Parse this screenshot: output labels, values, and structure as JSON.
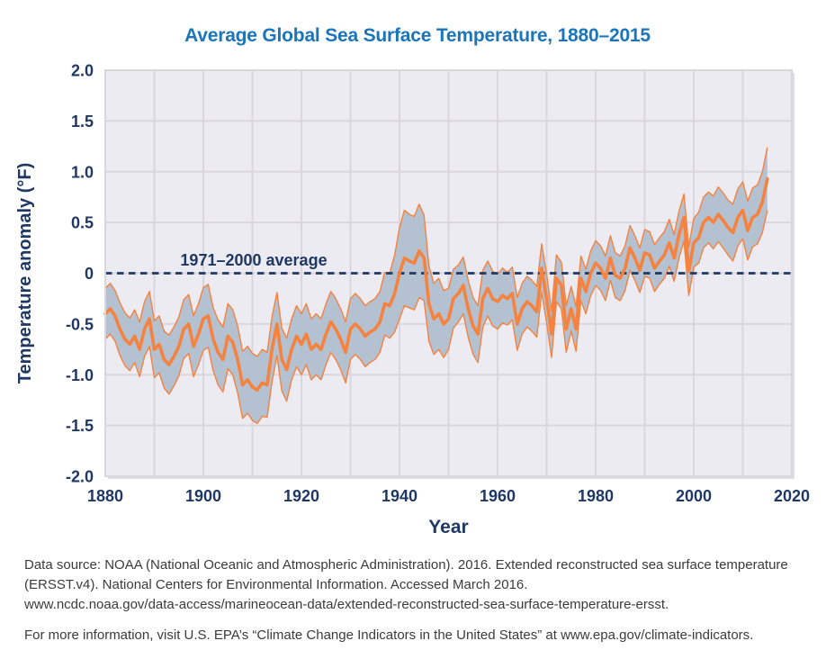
{
  "title": "Average Global Sea Surface Temperature, 1880–2015",
  "footer": {
    "source_lines": [
      "Data source: NOAA (National Oceanic and Atmospheric Administration). 2016. Extended reconstructed sea surface temperature",
      "(ERSST.v4). National Centers for Environmental Information. Accessed March 2016.",
      "www.ncdc.noaa.gov/data-access/marineocean-data/extended-reconstructed-sea-surface-temperature-ersst."
    ],
    "info_line": "For more information, visit U.S. EPA’s “Climate Change Indicators in the United States” at www.epa.gov/climate-indicators."
  },
  "chart_data": {
    "type": "line",
    "title": "Average Global Sea Surface Temperature, 1880–2015",
    "xlabel": "Year",
    "ylabel": "Temperature anomaly (°F)",
    "xlim": [
      1880,
      2020
    ],
    "ylim": [
      -2.0,
      2.0
    ],
    "grid": true,
    "legend_position": "none",
    "x_ticks": [
      1880,
      1900,
      1920,
      1940,
      1960,
      1980,
      2000,
      2020
    ],
    "x_grid_step": 10,
    "y_ticks": [
      {
        "value": 2.0,
        "label": "2.0"
      },
      {
        "value": 1.5,
        "label": "1.5"
      },
      {
        "value": 1.0,
        "label": "1.0"
      },
      {
        "value": 0.5,
        "label": "0.5"
      },
      {
        "value": 0.0,
        "label": "0"
      },
      {
        "value": -0.5,
        "label": "-0.5"
      },
      {
        "value": -1.0,
        "label": "-1.0"
      },
      {
        "value": -1.5,
        "label": "-1.5"
      },
      {
        "value": -2.0,
        "label": "-2.0"
      }
    ],
    "reference_line": {
      "value": 0,
      "label": "1971–2000 average",
      "style": "dashed"
    },
    "x": [
      1880,
      1881,
      1882,
      1883,
      1884,
      1885,
      1886,
      1887,
      1888,
      1889,
      1890,
      1891,
      1892,
      1893,
      1894,
      1895,
      1896,
      1897,
      1898,
      1899,
      1900,
      1901,
      1902,
      1903,
      1904,
      1905,
      1906,
      1907,
      1908,
      1909,
      1910,
      1911,
      1912,
      1913,
      1914,
      1915,
      1916,
      1917,
      1918,
      1919,
      1920,
      1921,
      1922,
      1923,
      1924,
      1925,
      1926,
      1927,
      1928,
      1929,
      1930,
      1931,
      1932,
      1933,
      1934,
      1935,
      1936,
      1937,
      1938,
      1939,
      1940,
      1941,
      1942,
      1943,
      1944,
      1945,
      1946,
      1947,
      1948,
      1949,
      1950,
      1951,
      1952,
      1953,
      1954,
      1955,
      1956,
      1957,
      1958,
      1959,
      1960,
      1961,
      1962,
      1963,
      1964,
      1965,
      1966,
      1967,
      1968,
      1969,
      1970,
      1971,
      1972,
      1973,
      1974,
      1975,
      1976,
      1977,
      1978,
      1979,
      1980,
      1981,
      1982,
      1983,
      1984,
      1985,
      1986,
      1987,
      1988,
      1989,
      1990,
      1991,
      1992,
      1993,
      1994,
      1995,
      1996,
      1997,
      1998,
      1999,
      2000,
      2001,
      2002,
      2003,
      2004,
      2005,
      2006,
      2007,
      2008,
      2009,
      2010,
      2011,
      2012,
      2013,
      2014,
      2015
    ],
    "series": [
      {
        "name": "Annual anomaly",
        "role": "center",
        "values": [
          -0.4,
          -0.35,
          -0.42,
          -0.55,
          -0.65,
          -0.7,
          -0.62,
          -0.75,
          -0.55,
          -0.45,
          -0.75,
          -0.7,
          -0.85,
          -0.9,
          -0.82,
          -0.72,
          -0.55,
          -0.5,
          -0.72,
          -0.6,
          -0.45,
          -0.42,
          -0.65,
          -0.78,
          -0.85,
          -0.62,
          -0.68,
          -0.85,
          -1.1,
          -1.05,
          -1.12,
          -1.15,
          -1.08,
          -1.1,
          -0.75,
          -0.5,
          -0.85,
          -0.95,
          -0.75,
          -0.62,
          -0.7,
          -0.6,
          -0.75,
          -0.7,
          -0.75,
          -0.6,
          -0.48,
          -0.55,
          -0.65,
          -0.78,
          -0.55,
          -0.5,
          -0.55,
          -0.62,
          -0.58,
          -0.55,
          -0.48,
          -0.3,
          -0.32,
          -0.2,
          0.0,
          0.15,
          0.12,
          0.1,
          0.22,
          0.15,
          -0.3,
          -0.45,
          -0.4,
          -0.5,
          -0.45,
          -0.25,
          -0.2,
          -0.12,
          -0.35,
          -0.52,
          -0.6,
          -0.25,
          -0.15,
          -0.25,
          -0.28,
          -0.22,
          -0.25,
          -0.2,
          -0.5,
          -0.35,
          -0.28,
          -0.32,
          -0.38,
          0.05,
          -0.25,
          -0.6,
          -0.05,
          -0.12,
          -0.55,
          -0.35,
          -0.55,
          -0.05,
          -0.18,
          0.0,
          0.1,
          0.05,
          -0.05,
          0.15,
          -0.02,
          -0.05,
          0.05,
          0.25,
          0.15,
          0.03,
          0.2,
          0.18,
          0.05,
          0.12,
          0.18,
          0.3,
          0.15,
          0.38,
          0.55,
          0.02,
          0.3,
          0.35,
          0.5,
          0.55,
          0.5,
          0.58,
          0.52,
          0.45,
          0.4,
          0.55,
          0.62,
          0.42,
          0.55,
          0.58,
          0.7,
          0.93
        ]
      },
      {
        "name": "Upper 95% confidence interval",
        "role": "band-upper",
        "values": [
          -0.15,
          -0.1,
          -0.17,
          -0.29,
          -0.39,
          -0.44,
          -0.36,
          -0.48,
          -0.28,
          -0.18,
          -0.47,
          -0.42,
          -0.57,
          -0.61,
          -0.53,
          -0.43,
          -0.26,
          -0.21,
          -0.42,
          -0.3,
          -0.14,
          -0.11,
          -0.34,
          -0.46,
          -0.53,
          -0.3,
          -0.36,
          -0.52,
          -0.77,
          -0.72,
          -0.79,
          -0.82,
          -0.75,
          -0.78,
          -0.43,
          -0.19,
          -0.54,
          -0.64,
          -0.45,
          -0.32,
          -0.4,
          -0.3,
          -0.45,
          -0.4,
          -0.45,
          -0.3,
          -0.18,
          -0.25,
          -0.35,
          -0.48,
          -0.25,
          -0.2,
          -0.25,
          -0.32,
          -0.28,
          -0.25,
          -0.18,
          0.01,
          0.0,
          0.18,
          0.45,
          0.62,
          0.58,
          0.56,
          0.68,
          0.57,
          0.07,
          -0.1,
          -0.05,
          -0.17,
          -0.15,
          0.04,
          0.08,
          0.16,
          -0.07,
          -0.24,
          -0.32,
          0.03,
          0.12,
          0.02,
          -0.01,
          0.05,
          0.01,
          0.06,
          -0.24,
          -0.1,
          -0.03,
          -0.07,
          -0.13,
          0.29,
          -0.01,
          -0.37,
          0.18,
          0.11,
          -0.32,
          -0.13,
          -0.33,
          0.17,
          0.04,
          0.22,
          0.32,
          0.27,
          0.17,
          0.37,
          0.2,
          0.17,
          0.27,
          0.47,
          0.37,
          0.25,
          0.43,
          0.41,
          0.28,
          0.35,
          0.41,
          0.53,
          0.38,
          0.61,
          0.78,
          0.26,
          0.54,
          0.6,
          0.75,
          0.8,
          0.76,
          0.85,
          0.79,
          0.72,
          0.68,
          0.83,
          0.9,
          0.71,
          0.84,
          0.87,
          1.0,
          1.24
        ]
      },
      {
        "name": "Lower 95% confidence interval",
        "role": "band-lower",
        "values": [
          -0.65,
          -0.6,
          -0.67,
          -0.81,
          -0.91,
          -0.96,
          -0.88,
          -1.02,
          -0.82,
          -0.72,
          -1.03,
          -0.98,
          -1.13,
          -1.19,
          -1.11,
          -1.01,
          -0.84,
          -0.79,
          -1.02,
          -0.9,
          -0.76,
          -0.73,
          -0.96,
          -1.1,
          -1.17,
          -0.94,
          -1.0,
          -1.18,
          -1.43,
          -1.38,
          -1.45,
          -1.48,
          -1.41,
          -1.42,
          -1.07,
          -0.81,
          -1.16,
          -1.26,
          -1.05,
          -0.92,
          -1.0,
          -0.9,
          -1.05,
          -1.0,
          -1.05,
          -0.9,
          -0.78,
          -0.85,
          -0.95,
          -1.08,
          -0.85,
          -0.8,
          -0.85,
          -0.92,
          -0.88,
          -0.85,
          -0.78,
          -0.61,
          -0.64,
          -0.58,
          -0.45,
          -0.32,
          -0.34,
          -0.36,
          -0.24,
          -0.27,
          -0.67,
          -0.8,
          -0.75,
          -0.83,
          -0.75,
          -0.54,
          -0.48,
          -0.4,
          -0.63,
          -0.8,
          -0.88,
          -0.53,
          -0.42,
          -0.52,
          -0.55,
          -0.49,
          -0.51,
          -0.46,
          -0.76,
          -0.6,
          -0.53,
          -0.57,
          -0.63,
          -0.19,
          -0.49,
          -0.83,
          -0.28,
          -0.35,
          -0.78,
          -0.57,
          -0.77,
          -0.27,
          -0.4,
          -0.22,
          -0.12,
          -0.17,
          -0.27,
          -0.07,
          -0.24,
          -0.27,
          -0.17,
          0.03,
          -0.07,
          -0.19,
          -0.03,
          -0.05,
          -0.18,
          -0.11,
          -0.05,
          0.07,
          -0.08,
          0.15,
          0.32,
          -0.22,
          0.06,
          0.1,
          0.25,
          0.3,
          0.24,
          0.31,
          0.25,
          0.18,
          0.12,
          0.27,
          0.34,
          0.13,
          0.26,
          0.29,
          0.4,
          0.62
        ]
      }
    ],
    "colors": {
      "title_blue": "#1b75bb",
      "navy": "#1f3864",
      "line_orange": "#f5823f",
      "band_fill": "#b4c1d0",
      "plot_bg": "#edebf2",
      "grid": "#d9d7dd",
      "frame": "#d7d6db",
      "plot_shadow": "#dedde2",
      "footer_text": "#3b3b3b"
    }
  }
}
